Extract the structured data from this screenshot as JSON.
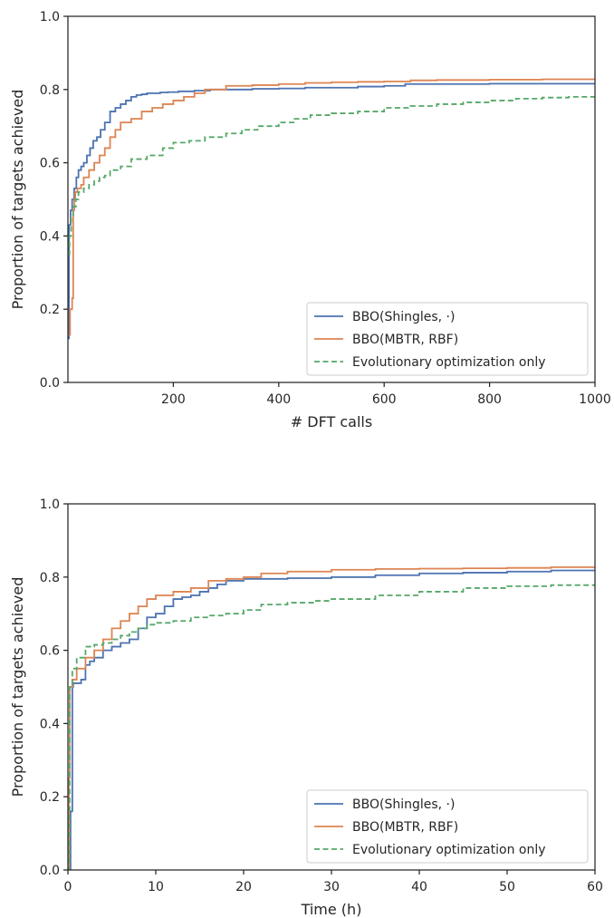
{
  "colors": {
    "bbo_shingles": "#4c72b0",
    "bbo_mbtr": "#dd8452",
    "evolutionary": "#55a868",
    "axis": "#262626"
  },
  "chart_data": [
    {
      "type": "line",
      "xlabel": "# DFT calls",
      "ylabel": "Proportion of targets achieved",
      "xlim": [
        0,
        1000
      ],
      "ylim": [
        0.0,
        1.0
      ],
      "xticks": [
        "200",
        "400",
        "600",
        "800",
        "1000"
      ],
      "yticks": [
        "0.0",
        "0.2",
        "0.4",
        "0.6",
        "0.8",
        "1.0"
      ],
      "grid": false,
      "legend_position": "lower-right",
      "series": [
        {
          "name": "BBO(Shingles, ·)",
          "style": "solid",
          "x": [
            0,
            2,
            5,
            8,
            12,
            16,
            20,
            25,
            30,
            36,
            42,
            48,
            55,
            62,
            70,
            80,
            90,
            100,
            110,
            120,
            130,
            140,
            150,
            160,
            175,
            190,
            210,
            240,
            270,
            300,
            350,
            400,
            450,
            500,
            550,
            600,
            640,
            700,
            800,
            900,
            1000
          ],
          "y": [
            0.12,
            0.43,
            0.47,
            0.5,
            0.53,
            0.56,
            0.58,
            0.59,
            0.6,
            0.62,
            0.64,
            0.66,
            0.67,
            0.69,
            0.71,
            0.74,
            0.75,
            0.76,
            0.77,
            0.78,
            0.785,
            0.787,
            0.79,
            0.79,
            0.792,
            0.793,
            0.795,
            0.797,
            0.8,
            0.8,
            0.802,
            0.803,
            0.805,
            0.805,
            0.808,
            0.81,
            0.815,
            0.815,
            0.816,
            0.816,
            0.817
          ]
        },
        {
          "name": "BBO(MBTR, RBF)",
          "style": "solid",
          "x": [
            0,
            4,
            8,
            10,
            12,
            14,
            18,
            25,
            30,
            40,
            50,
            60,
            70,
            80,
            90,
            100,
            120,
            140,
            160,
            180,
            200,
            220,
            240,
            260,
            300,
            350,
            400,
            450,
            500,
            550,
            600,
            650,
            700,
            800,
            900,
            1000
          ],
          "y": [
            0.13,
            0.2,
            0.23,
            0.47,
            0.5,
            0.52,
            0.53,
            0.54,
            0.56,
            0.58,
            0.6,
            0.62,
            0.64,
            0.67,
            0.69,
            0.71,
            0.72,
            0.74,
            0.75,
            0.76,
            0.77,
            0.78,
            0.79,
            0.8,
            0.81,
            0.812,
            0.815,
            0.818,
            0.82,
            0.821,
            0.822,
            0.825,
            0.826,
            0.827,
            0.828,
            0.829
          ]
        },
        {
          "name": "Evolutionary optimization only",
          "style": "dashed",
          "x": [
            0,
            3,
            6,
            10,
            15,
            20,
            30,
            40,
            50,
            60,
            70,
            80,
            100,
            120,
            150,
            180,
            200,
            230,
            260,
            300,
            330,
            360,
            400,
            430,
            460,
            500,
            550,
            600,
            650,
            700,
            750,
            800,
            850,
            900,
            950,
            1000
          ],
          "y": [
            0.35,
            0.4,
            0.45,
            0.48,
            0.5,
            0.52,
            0.53,
            0.54,
            0.55,
            0.56,
            0.565,
            0.58,
            0.59,
            0.61,
            0.62,
            0.64,
            0.655,
            0.66,
            0.67,
            0.68,
            0.69,
            0.7,
            0.71,
            0.72,
            0.73,
            0.735,
            0.74,
            0.75,
            0.755,
            0.76,
            0.765,
            0.77,
            0.775,
            0.778,
            0.78,
            0.783
          ]
        }
      ]
    },
    {
      "type": "line",
      "xlabel": "Time (h)",
      "ylabel": "Proportion of targets achieved",
      "xlim": [
        0,
        60
      ],
      "ylim": [
        0.0,
        1.0
      ],
      "xticks": [
        "0",
        "10",
        "20",
        "30",
        "40",
        "50",
        "60"
      ],
      "yticks": [
        "0.0",
        "0.2",
        "0.4",
        "0.6",
        "0.8",
        "1.0"
      ],
      "grid": false,
      "legend_position": "lower-right",
      "series": [
        {
          "name": "BBO(Shingles, ·)",
          "style": "solid",
          "x": [
            0,
            0.3,
            0.5,
            0.6,
            1,
            1.5,
            2,
            2.5,
            3,
            4,
            5,
            6,
            7,
            8,
            9,
            10,
            11,
            12,
            13,
            14,
            15,
            16,
            17,
            18,
            20,
            25,
            30,
            35,
            40,
            45,
            50,
            55,
            60
          ],
          "y": [
            0.0,
            0.16,
            0.5,
            0.51,
            0.51,
            0.52,
            0.56,
            0.57,
            0.58,
            0.6,
            0.61,
            0.62,
            0.63,
            0.66,
            0.69,
            0.7,
            0.72,
            0.74,
            0.745,
            0.75,
            0.76,
            0.77,
            0.78,
            0.79,
            0.795,
            0.797,
            0.8,
            0.805,
            0.81,
            0.812,
            0.815,
            0.818,
            0.82
          ]
        },
        {
          "name": "BBO(MBTR, RBF)",
          "style": "solid",
          "x": [
            0,
            0.1,
            0.2,
            0.5,
            1,
            2,
            3,
            4,
            5,
            6,
            7,
            8,
            9,
            10,
            12,
            14,
            16,
            18,
            20,
            22,
            25,
            30,
            35,
            40,
            45,
            50,
            55,
            60
          ],
          "y": [
            0.0,
            0.25,
            0.5,
            0.52,
            0.55,
            0.58,
            0.6,
            0.63,
            0.66,
            0.68,
            0.7,
            0.72,
            0.74,
            0.75,
            0.76,
            0.77,
            0.79,
            0.795,
            0.8,
            0.81,
            0.815,
            0.82,
            0.822,
            0.823,
            0.824,
            0.825,
            0.827,
            0.828
          ]
        },
        {
          "name": "Evolutionary optimization only",
          "style": "dashed",
          "x": [
            0,
            0.2,
            0.5,
            1,
            2,
            3,
            4,
            5,
            6,
            7,
            8,
            9,
            10,
            12,
            14,
            16,
            18,
            20,
            22,
            25,
            28,
            30,
            35,
            40,
            45,
            50,
            55,
            60
          ],
          "y": [
            0.0,
            0.5,
            0.55,
            0.58,
            0.61,
            0.615,
            0.62,
            0.63,
            0.64,
            0.65,
            0.66,
            0.67,
            0.675,
            0.68,
            0.69,
            0.695,
            0.7,
            0.71,
            0.725,
            0.73,
            0.735,
            0.74,
            0.75,
            0.76,
            0.77,
            0.775,
            0.778,
            0.78
          ]
        }
      ]
    }
  ]
}
